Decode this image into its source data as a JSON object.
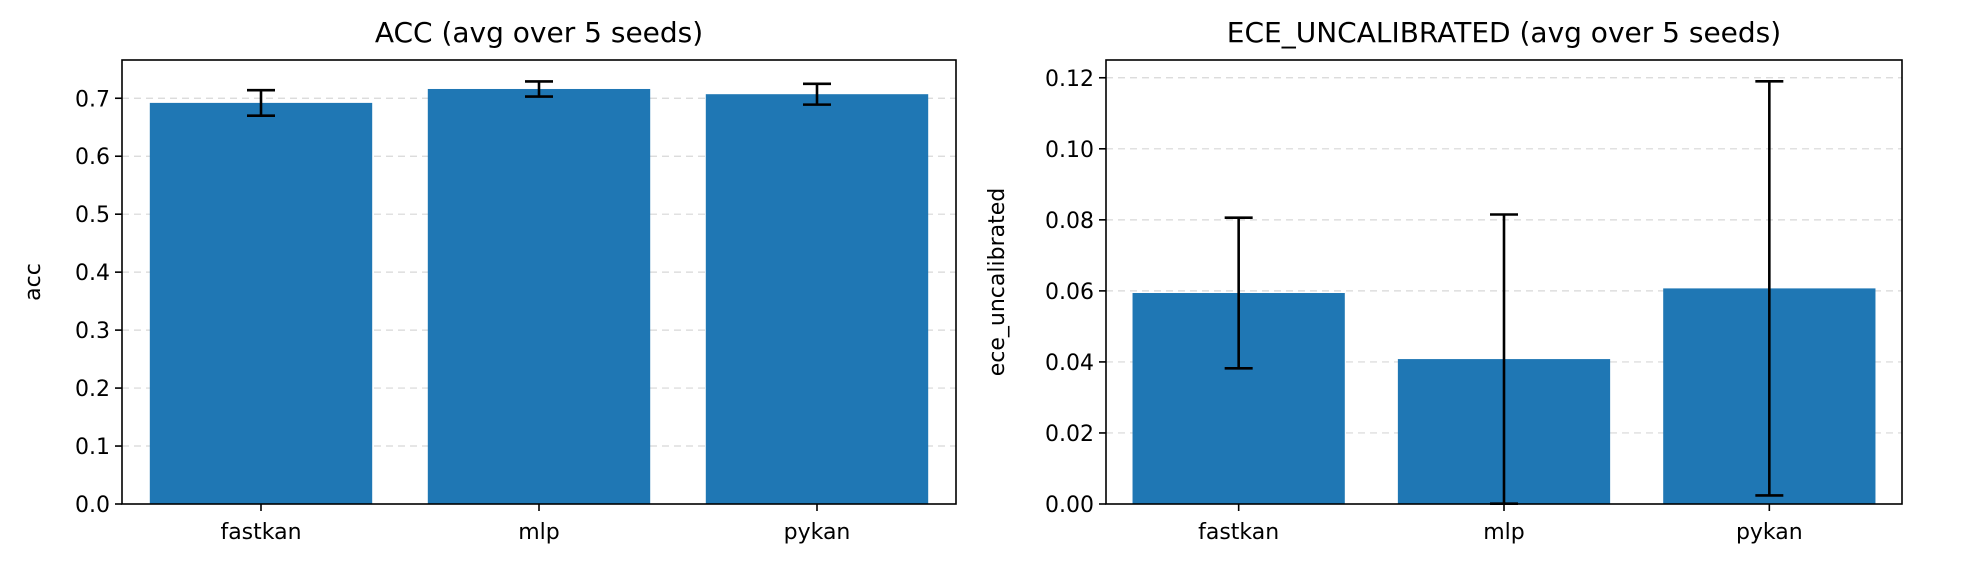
{
  "chart_data": [
    {
      "type": "bar",
      "title": "ACC (avg over 5 seeds)",
      "xlabel": "",
      "ylabel": "acc",
      "categories": [
        "fastkan",
        "mlp",
        "pykan"
      ],
      "values": [
        0.692,
        0.716,
        0.707
      ],
      "errors": [
        0.022,
        0.013,
        0.018
      ],
      "ylim": [
        0,
        0.766
      ],
      "yticks": [
        0.0,
        0.1,
        0.2,
        0.3,
        0.4,
        0.5,
        0.6,
        0.7
      ],
      "ytick_labels": [
        "0.0",
        "0.1",
        "0.2",
        "0.3",
        "0.4",
        "0.5",
        "0.6",
        "0.7"
      ],
      "grid": "y-dashed",
      "color": "#1f77b4"
    },
    {
      "type": "bar",
      "title": "ECE_UNCALIBRATED (avg over 5 seeds)",
      "xlabel": "",
      "ylabel": "ece_uncalibrated",
      "categories": [
        "fastkan",
        "mlp",
        "pykan"
      ],
      "values": [
        0.0594,
        0.0408,
        0.0607
      ],
      "errors": [
        0.0212,
        0.0407,
        0.0583
      ],
      "ylim": [
        0,
        0.125
      ],
      "yticks": [
        0.0,
        0.02,
        0.04,
        0.06,
        0.08,
        0.1,
        0.12
      ],
      "ytick_labels": [
        "0.00",
        "0.02",
        "0.04",
        "0.06",
        "0.08",
        "0.10",
        "0.12"
      ],
      "grid": "y-dashed",
      "color": "#1f77b4"
    }
  ]
}
